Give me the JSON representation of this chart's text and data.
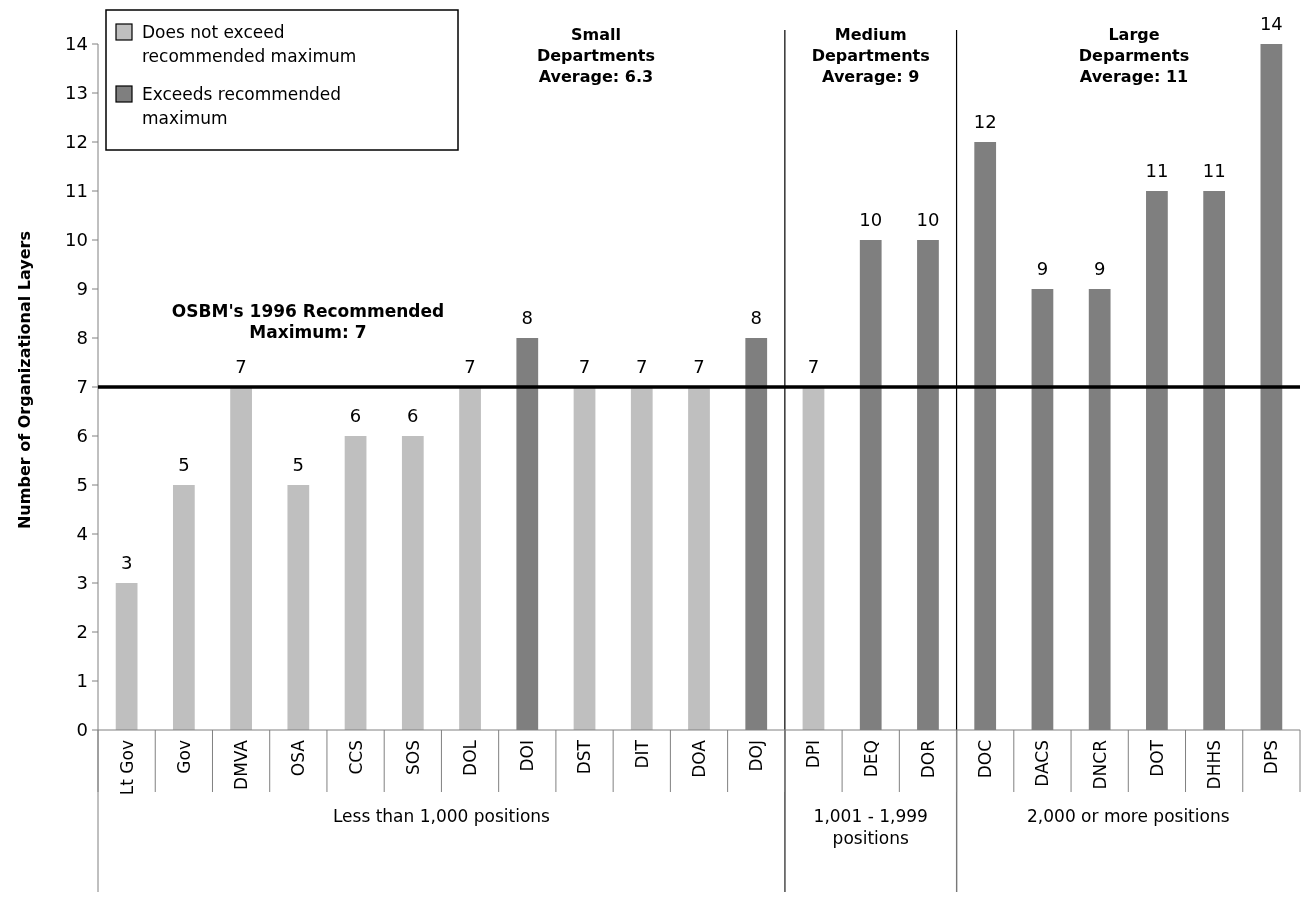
{
  "chart_data": {
    "type": "bar",
    "ylabel": "Number of Organizational Layers",
    "categories": [
      "Lt Gov",
      "Gov",
      "DMVA",
      "OSA",
      "CCS",
      "SOS",
      "DOL",
      "DOI",
      "DST",
      "DIT",
      "DOA",
      "DOJ",
      "DPI",
      "DEQ",
      "DOR",
      "DOC",
      "DACS",
      "DNCR",
      "DOT",
      "DHHS",
      "DPS"
    ],
    "series": [
      {
        "name": "Does not exceed recommended maximum",
        "color": "#bfbfbf",
        "values": [
          3,
          5,
          7,
          5,
          6,
          6,
          7,
          null,
          7,
          7,
          7,
          null,
          7,
          null,
          null,
          null,
          null,
          null,
          null,
          null,
          null
        ]
      },
      {
        "name": "Exceeds recommended maximum",
        "color": "#7f7f7f",
        "values": [
          null,
          null,
          null,
          null,
          null,
          null,
          null,
          8,
          null,
          null,
          null,
          8,
          null,
          10,
          10,
          12,
          9,
          9,
          11,
          11,
          14
        ]
      }
    ],
    "stacked": true,
    "data_labels": true,
    "ylim": [
      0,
      14
    ],
    "yticks": [
      0,
      1,
      2,
      3,
      4,
      5,
      6,
      7,
      8,
      9,
      10,
      11,
      12,
      13,
      14
    ],
    "grid": false,
    "legend": "top left",
    "ref_lines": [
      {
        "axis": "y",
        "value": 7,
        "label": "OSBM's 1996 Recommended\nMaximum: 7",
        "color": "#000000"
      }
    ],
    "annotations": [
      "Small\nDepartments\nAverage: 6.3",
      "Medium\nDepartments\nAverage: 9",
      "Large\nDeparments\nAverage: 11",
      "Less than 1,000 positions",
      "1,001 - 1,999\npositions",
      "2,000 or more positions"
    ]
  }
}
